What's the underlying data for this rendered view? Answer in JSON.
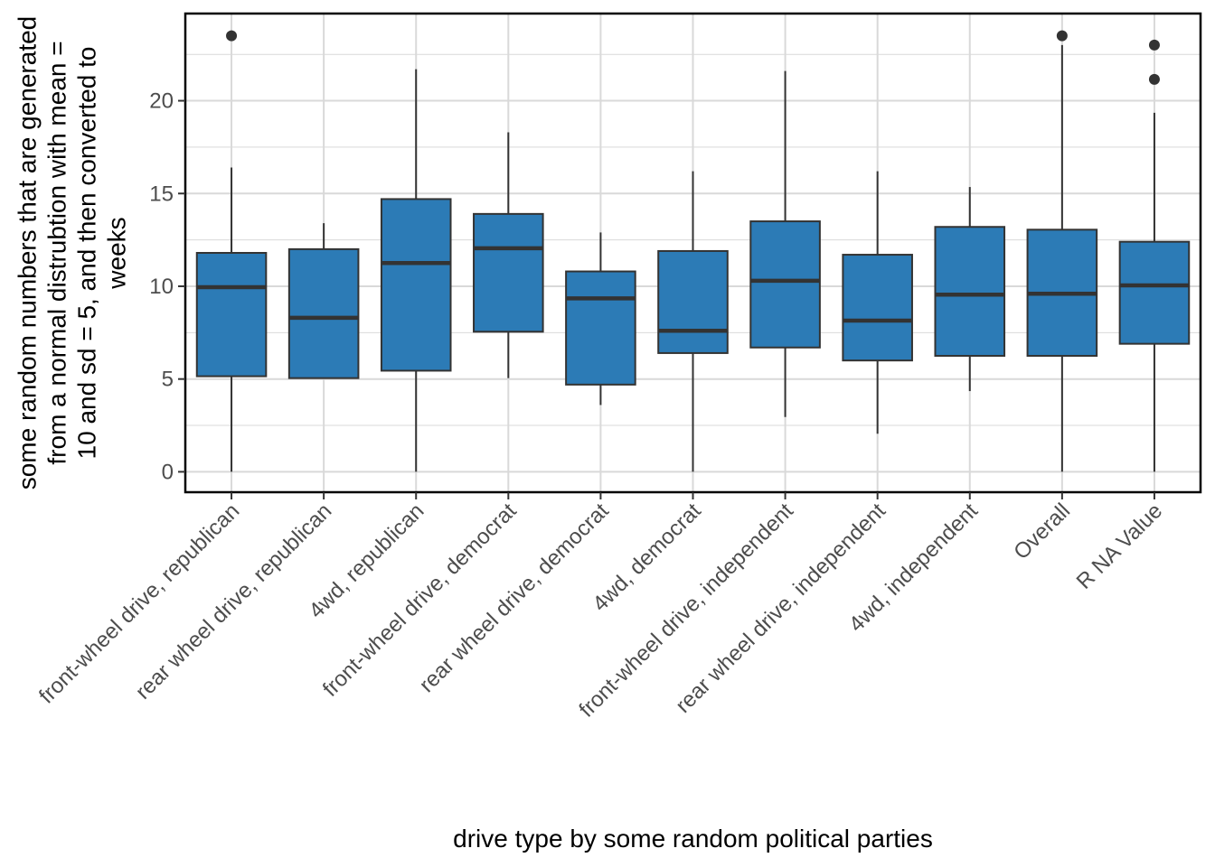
{
  "chart_data": {
    "type": "box",
    "xlabel": "drive type by some random political parties",
    "ylabel_lines": [
      "some random numbers that are generated",
      "from a normal distrubtion with mean =",
      "10 and sd = 5, and then converted to",
      "weeks"
    ],
    "ylim": [
      -1.1,
      24.7
    ],
    "yticks": [
      0,
      5,
      10,
      15,
      20
    ],
    "grid": true,
    "categories": [
      "front-wheel drive, republican",
      "rear wheel drive, republican",
      "4wd, republican",
      "front-wheel drive, democrat",
      "rear wheel drive, democrat",
      "4wd, democrat",
      "front-wheel drive, independent",
      "rear wheel drive, independent",
      "4wd, independent",
      "Overall",
      "R NA Value"
    ],
    "boxes": [
      {
        "min": 0.0,
        "q1": 5.15,
        "median": 9.95,
        "q3": 11.8,
        "max": 16.4,
        "outliers": [
          23.5
        ]
      },
      {
        "min": 5.05,
        "q1": 5.05,
        "median": 8.3,
        "q3": 12.0,
        "max": 13.4,
        "outliers": []
      },
      {
        "min": 0.0,
        "q1": 5.45,
        "median": 11.25,
        "q3": 14.7,
        "max": 21.7,
        "outliers": []
      },
      {
        "min": 5.05,
        "q1": 7.55,
        "median": 12.05,
        "q3": 13.9,
        "max": 18.3,
        "outliers": []
      },
      {
        "min": 3.6,
        "q1": 4.7,
        "median": 9.35,
        "q3": 10.8,
        "max": 12.9,
        "outliers": []
      },
      {
        "min": 0.0,
        "q1": 6.4,
        "median": 7.6,
        "q3": 11.9,
        "max": 16.2,
        "outliers": []
      },
      {
        "min": 2.95,
        "q1": 6.7,
        "median": 10.3,
        "q3": 13.5,
        "max": 21.6,
        "outliers": []
      },
      {
        "min": 2.05,
        "q1": 6.0,
        "median": 8.15,
        "q3": 11.7,
        "max": 16.2,
        "outliers": []
      },
      {
        "min": 4.35,
        "q1": 6.25,
        "median": 9.55,
        "q3": 13.2,
        "max": 15.35,
        "outliers": []
      },
      {
        "min": 0.0,
        "q1": 6.25,
        "median": 9.6,
        "q3": 13.05,
        "max": 23.0,
        "outliers": [
          23.5
        ]
      },
      {
        "min": 0.0,
        "q1": 6.9,
        "median": 10.05,
        "q3": 12.4,
        "max": 19.35,
        "outliers": [
          23.0,
          21.15
        ]
      }
    ],
    "colors": {
      "box_fill": "#2c7bb6",
      "box_stroke": "#333333",
      "grid": "#d9d9d9",
      "panel_border": "#000000"
    }
  }
}
